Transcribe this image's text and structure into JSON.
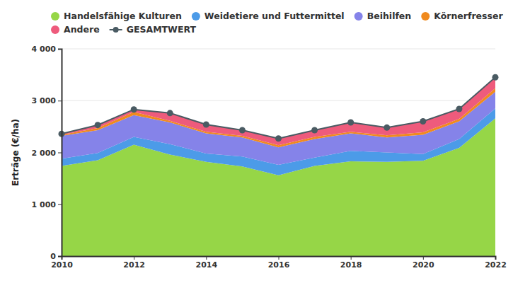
{
  "chart_data": {
    "type": "area",
    "stacked": true,
    "grid": true,
    "legend": "top",
    "y_label": "Erträge (€/ha)",
    "x": [
      2010,
      2011,
      2012,
      2013,
      2014,
      2015,
      2016,
      2017,
      2018,
      2019,
      2020,
      2021,
      2022
    ],
    "xlim": [
      2010,
      2022
    ],
    "xticks": [
      2010,
      2012,
      2014,
      2016,
      2018,
      2020,
      2022
    ],
    "ylim": [
      0,
      4000
    ],
    "yticks": [
      0,
      {
        "value": 1000,
        "label": "1 000"
      },
      {
        "value": 2000,
        "label": "2 000"
      },
      {
        "value": 3000,
        "label": "3 000"
      },
      {
        "value": 4000,
        "label": "4 000"
      }
    ],
    "series": [
      {
        "name": "Handelsfähige Kulturen",
        "color": "#96d647",
        "values": [
          1740,
          1850,
          2150,
          1960,
          1820,
          1730,
          1560,
          1740,
          1830,
          1820,
          1840,
          2090,
          2660
        ]
      },
      {
        "name": "Weidetiere und Futtermittel",
        "color": "#4c9be8",
        "values": [
          140,
          140,
          150,
          200,
          160,
          190,
          200,
          160,
          200,
          180,
          130,
          170,
          190
        ]
      },
      {
        "name": "Beihilfen",
        "color": "#8583e9",
        "values": [
          440,
          440,
          420,
          420,
          390,
          370,
          340,
          360,
          340,
          290,
          370,
          340,
          320
        ]
      },
      {
        "name": "Körnerfresser",
        "color": "#f08a1e",
        "values": [
          20,
          40,
          60,
          30,
          30,
          30,
          40,
          40,
          30,
          40,
          50,
          50,
          70
        ]
      },
      {
        "name": "Andere",
        "color": "#ee5b7c",
        "values": [
          20,
          60,
          50,
          150,
          140,
          110,
          130,
          130,
          180,
          150,
          210,
          190,
          210
        ]
      },
      {
        "name": "GESAMTWERT",
        "color": "#4a5b63",
        "type": "line",
        "marker": "circle",
        "stacked": false,
        "values": [
          2360,
          2530,
          2830,
          2760,
          2540,
          2430,
          2270,
          2430,
          2580,
          2480,
          2600,
          2840,
          3450
        ]
      }
    ]
  }
}
